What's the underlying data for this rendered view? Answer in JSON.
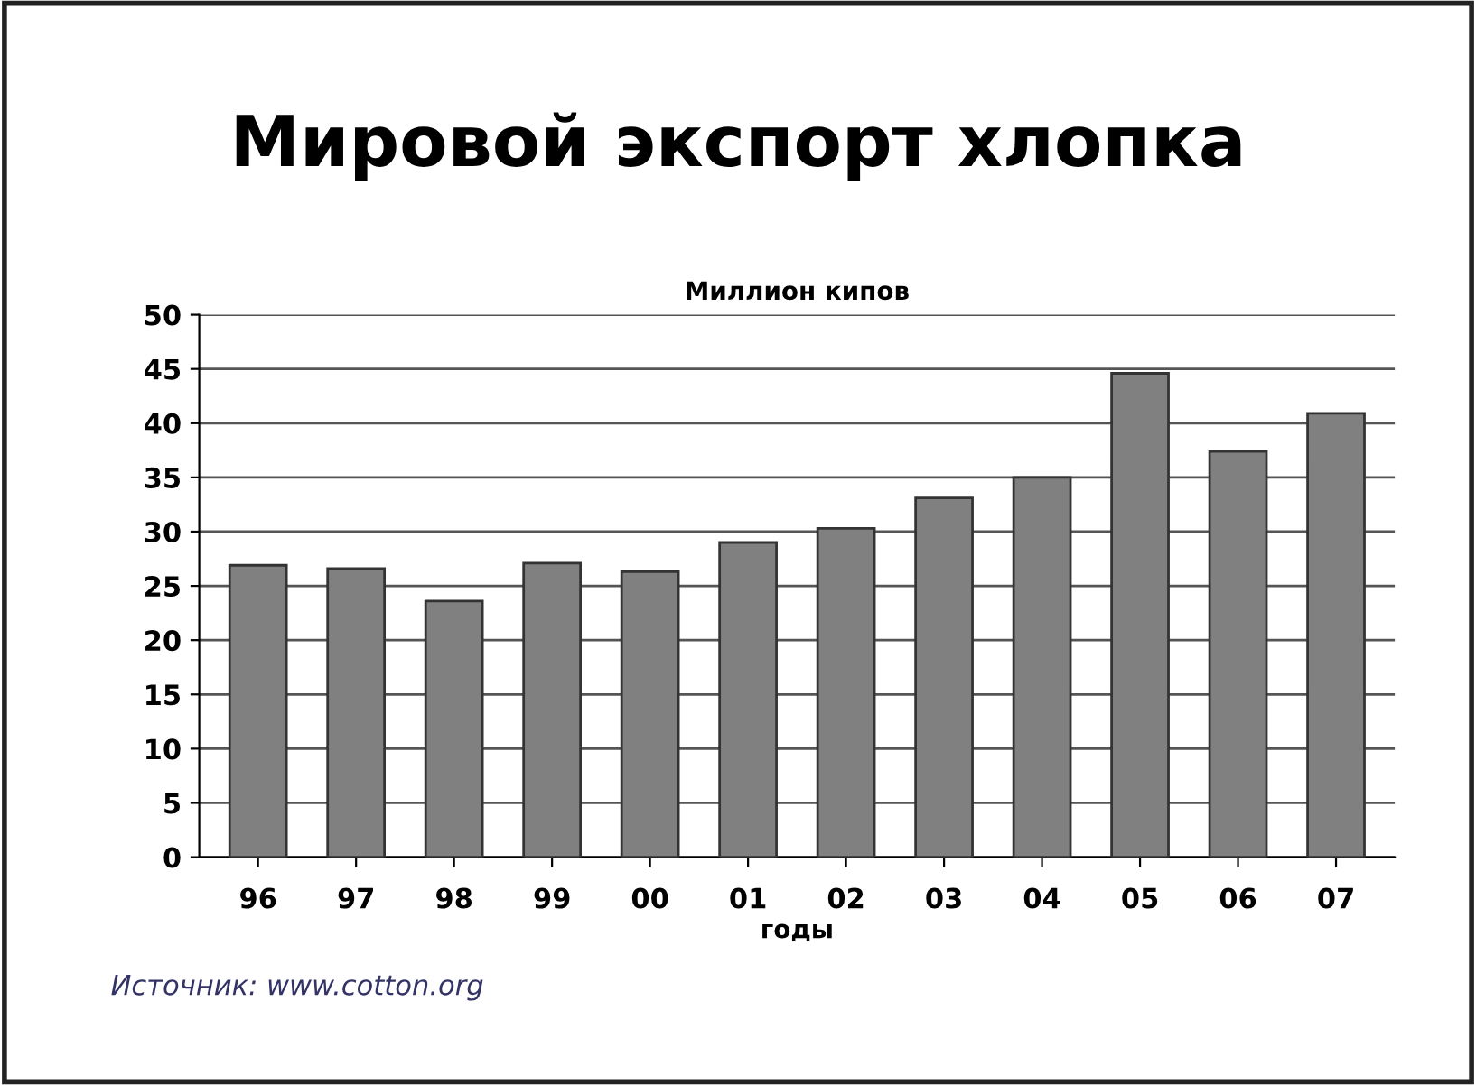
{
  "chart_data": {
    "type": "bar",
    "title": "Мировой экспорт хлопка",
    "subtitle": "Миллион кипов",
    "xlabel": "годы",
    "categories": [
      "96",
      "97",
      "98",
      "99",
      "00",
      "01",
      "02",
      "03",
      "04",
      "05",
      "06",
      "07"
    ],
    "values": [
      26.9,
      26.6,
      23.6,
      27.1,
      26.3,
      29.0,
      30.3,
      33.1,
      35.0,
      44.6,
      37.4,
      40.9
    ],
    "color": "#808080",
    "ylim": [
      0,
      50
    ],
    "yticks": [
      0,
      5,
      10,
      15,
      20,
      25,
      30,
      35,
      40,
      45,
      50
    ],
    "grid": "y",
    "annotations": [
      "Источник: www.cotton.org"
    ]
  }
}
